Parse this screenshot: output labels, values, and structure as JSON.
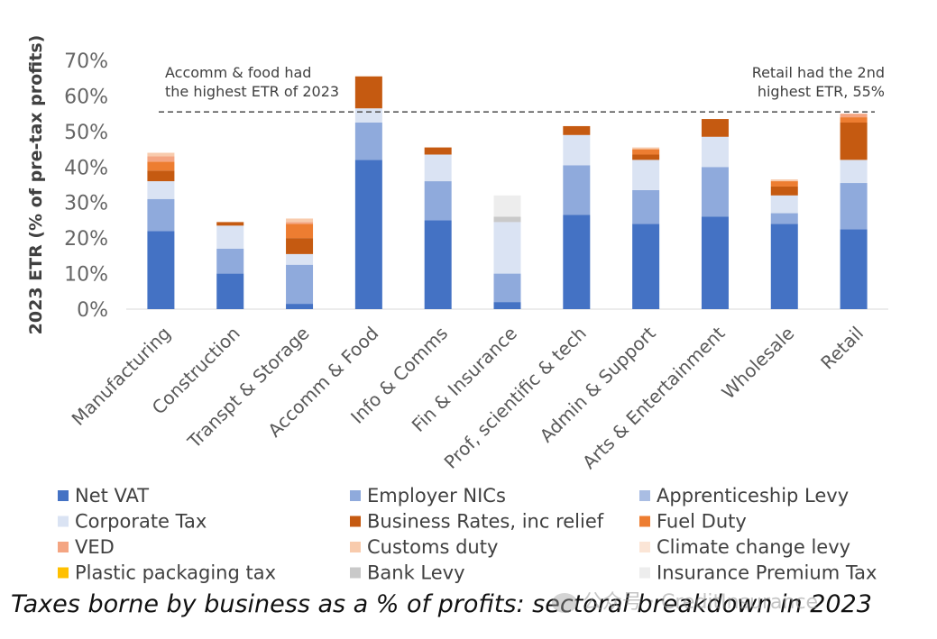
{
  "chart_data": {
    "type": "bar",
    "stacked": true,
    "ylabel": "2023 ETR (% of pre-tax profits)",
    "ylim": [
      0,
      70
    ],
    "yticks": [
      "0%",
      "10%",
      "20%",
      "30%",
      "40%",
      "50%",
      "60%",
      "70%"
    ],
    "grid": false,
    "legend_position": "bottom",
    "reference_line": 55.5,
    "annotations": [
      {
        "lines": [
          "Accomm & food had",
          "the highest ETR of 2023"
        ]
      },
      {
        "lines": [
          "Retail had the 2nd",
          "highest  ETR, 55%"
        ]
      }
    ],
    "categories": [
      "Manufacturing",
      "Construction",
      "Transpt & Storage",
      "Accomm & Food",
      "Info & Comms",
      "Fin & Insurance",
      "Prof, scientific & tech",
      "Admin & Support",
      "Arts & Entertainment",
      "Wholesale",
      "Retail"
    ],
    "series": [
      {
        "name": "Net VAT",
        "color": "#4472c4",
        "values": [
          22,
          10,
          1.5,
          42,
          25,
          2,
          26.5,
          24,
          26,
          24,
          22.5
        ]
      },
      {
        "name": "Employer NICs",
        "color": "#8faadc",
        "values": [
          9,
          7,
          11,
          10.5,
          11,
          8,
          14,
          9.5,
          14,
          3,
          13
        ]
      },
      {
        "name": "Apprenticeship Levy",
        "color": "#a9bde3",
        "values": [
          0,
          0,
          0,
          0,
          0,
          0,
          0,
          0,
          0,
          0,
          0
        ]
      },
      {
        "name": "Corporate Tax",
        "color": "#dae3f3",
        "values": [
          5,
          6.5,
          3,
          4,
          7.5,
          14.5,
          8.5,
          8.5,
          8.5,
          5,
          6.5
        ]
      },
      {
        "name": "Business Rates, inc relief",
        "color": "#c55a11",
        "values": [
          3,
          1,
          4.5,
          9,
          2,
          0,
          2.5,
          1.5,
          5,
          2.5,
          10.5
        ]
      },
      {
        "name": "Fuel Duty",
        "color": "#ed7d31",
        "values": [
          2.5,
          0,
          4,
          0,
          0,
          0,
          0,
          1.5,
          0,
          1.5,
          1.5
        ]
      },
      {
        "name": "VED",
        "color": "#f4a582",
        "values": [
          1.5,
          0,
          0.5,
          0,
          0,
          0,
          0,
          0,
          0,
          0,
          1
        ]
      },
      {
        "name": "Customs duty",
        "color": "#f8cbad",
        "values": [
          1,
          0,
          1,
          0,
          0,
          0,
          0,
          0.5,
          0,
          0.5,
          0
        ]
      },
      {
        "name": "Climate change levy",
        "color": "#fbe5d6",
        "values": [
          0,
          0,
          0,
          0,
          0,
          0,
          0,
          0,
          0,
          0,
          0
        ]
      },
      {
        "name": "Plastic packaging tax",
        "color": "#ffc000",
        "values": [
          0,
          0,
          0,
          0,
          0,
          0,
          0,
          0,
          0,
          0,
          0
        ]
      },
      {
        "name": "Bank Levy",
        "color": "#c9c9c9",
        "values": [
          0,
          0,
          0,
          0,
          0,
          1.5,
          0,
          0,
          0,
          0,
          0
        ]
      },
      {
        "name": "Insurance Premium Tax",
        "color": "#ededed",
        "values": [
          0,
          0,
          0,
          0,
          0,
          6,
          0,
          0,
          0,
          0,
          0
        ]
      }
    ]
  },
  "caption": "Taxes borne by business as a % of profits: sectoral breakdown in 2023",
  "watermark": "公众号 · CreditInsurance"
}
